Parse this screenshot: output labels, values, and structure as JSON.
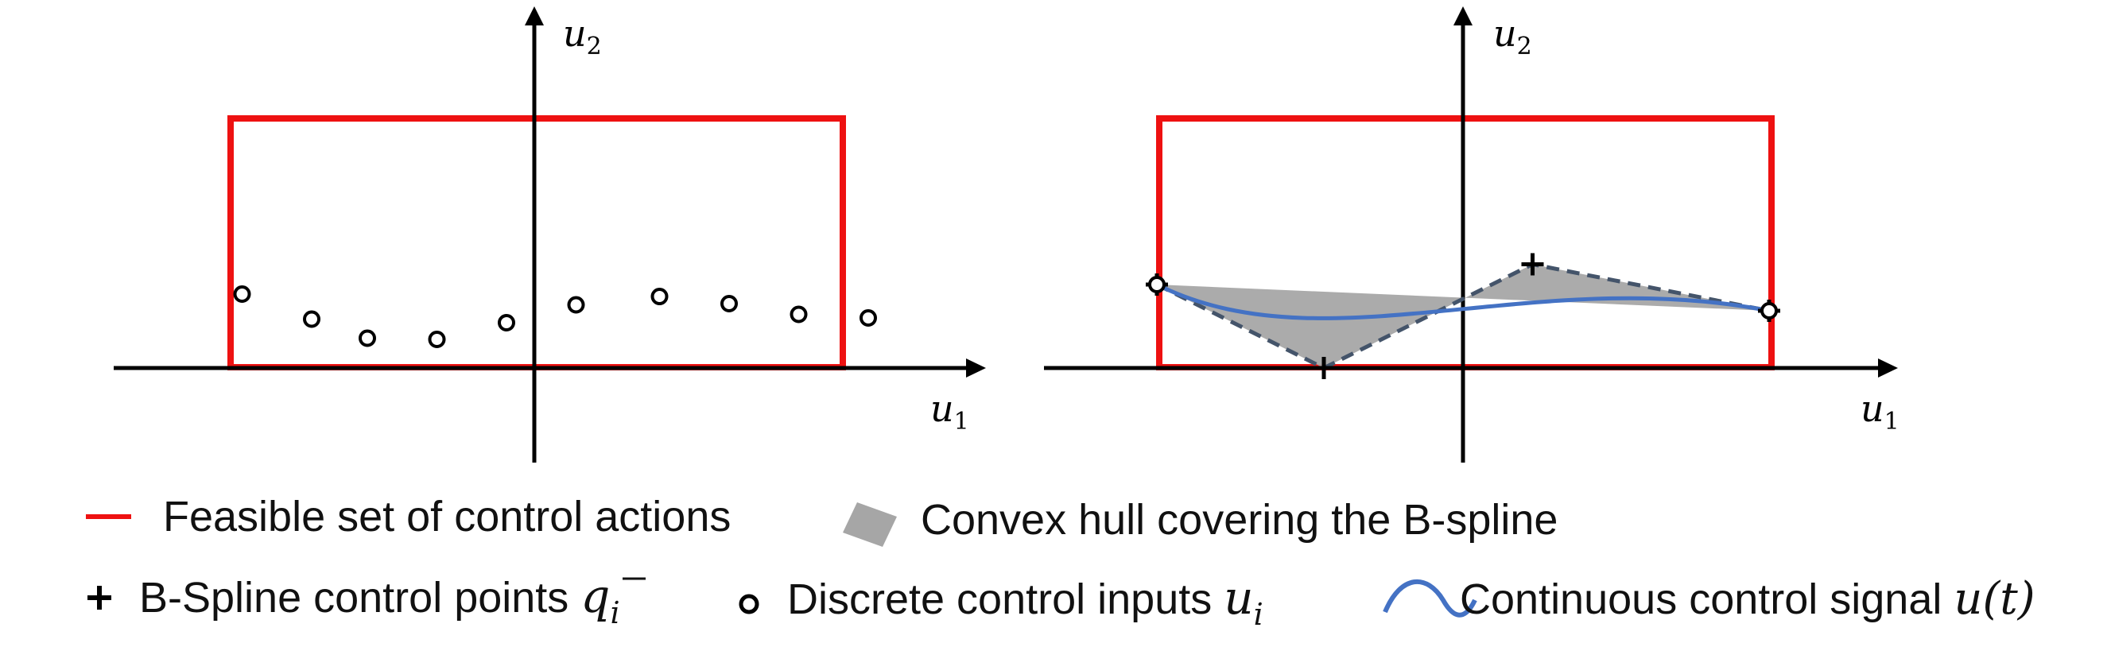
{
  "colors": {
    "feasible": "#ee1111",
    "axis": "#000000",
    "hull": "#a6a6a6",
    "control_polygon": "#44546a",
    "signal": "#4472c4"
  },
  "left_panel": {
    "axis_x_label": "u",
    "axis_x_sub": "1",
    "axis_y_label": "u",
    "axis_y_sub": "2",
    "discrete_inputs": [
      {
        "u1": -2.1,
        "u2": 0.62
      },
      {
        "u1": -1.6,
        "u2": 0.41
      },
      {
        "u1": -1.2,
        "u2": 0.25
      },
      {
        "u1": -0.7,
        "u2": 0.24
      },
      {
        "u1": -0.2,
        "u2": 0.38
      },
      {
        "u1": 0.3,
        "u2": 0.53
      },
      {
        "u1": 0.9,
        "u2": 0.6
      },
      {
        "u1": 1.4,
        "u2": 0.54
      },
      {
        "u1": 1.9,
        "u2": 0.45
      },
      {
        "u1": 2.4,
        "u2": 0.42
      }
    ]
  },
  "right_panel": {
    "axis_x_label": "u",
    "axis_x_sub": "1",
    "axis_y_label": "u",
    "axis_y_sub": "2",
    "control_points": [
      {
        "u1": -2.2,
        "u2": 0.7
      },
      {
        "u1": -1.0,
        "u2": 0.0
      },
      {
        "u1": 0.5,
        "u2": 0.87
      },
      {
        "u1": 2.2,
        "u2": 0.48
      }
    ],
    "discrete_endpoints": [
      {
        "u1": -2.2,
        "u2": 0.7
      },
      {
        "u1": 2.2,
        "u2": 0.48
      }
    ]
  },
  "legend": {
    "feasible_label": "Feasible set of control actions",
    "hull_label": "Convex hull covering the B-spline",
    "control_points_label": "B-Spline control points ",
    "control_points_symbol": "q",
    "control_points_sub": "i",
    "discrete_label": "Discrete control inputs ",
    "discrete_symbol": "u",
    "discrete_sub": "i",
    "signal_label": "Continuous control signal ",
    "signal_symbol": "u(t)"
  }
}
